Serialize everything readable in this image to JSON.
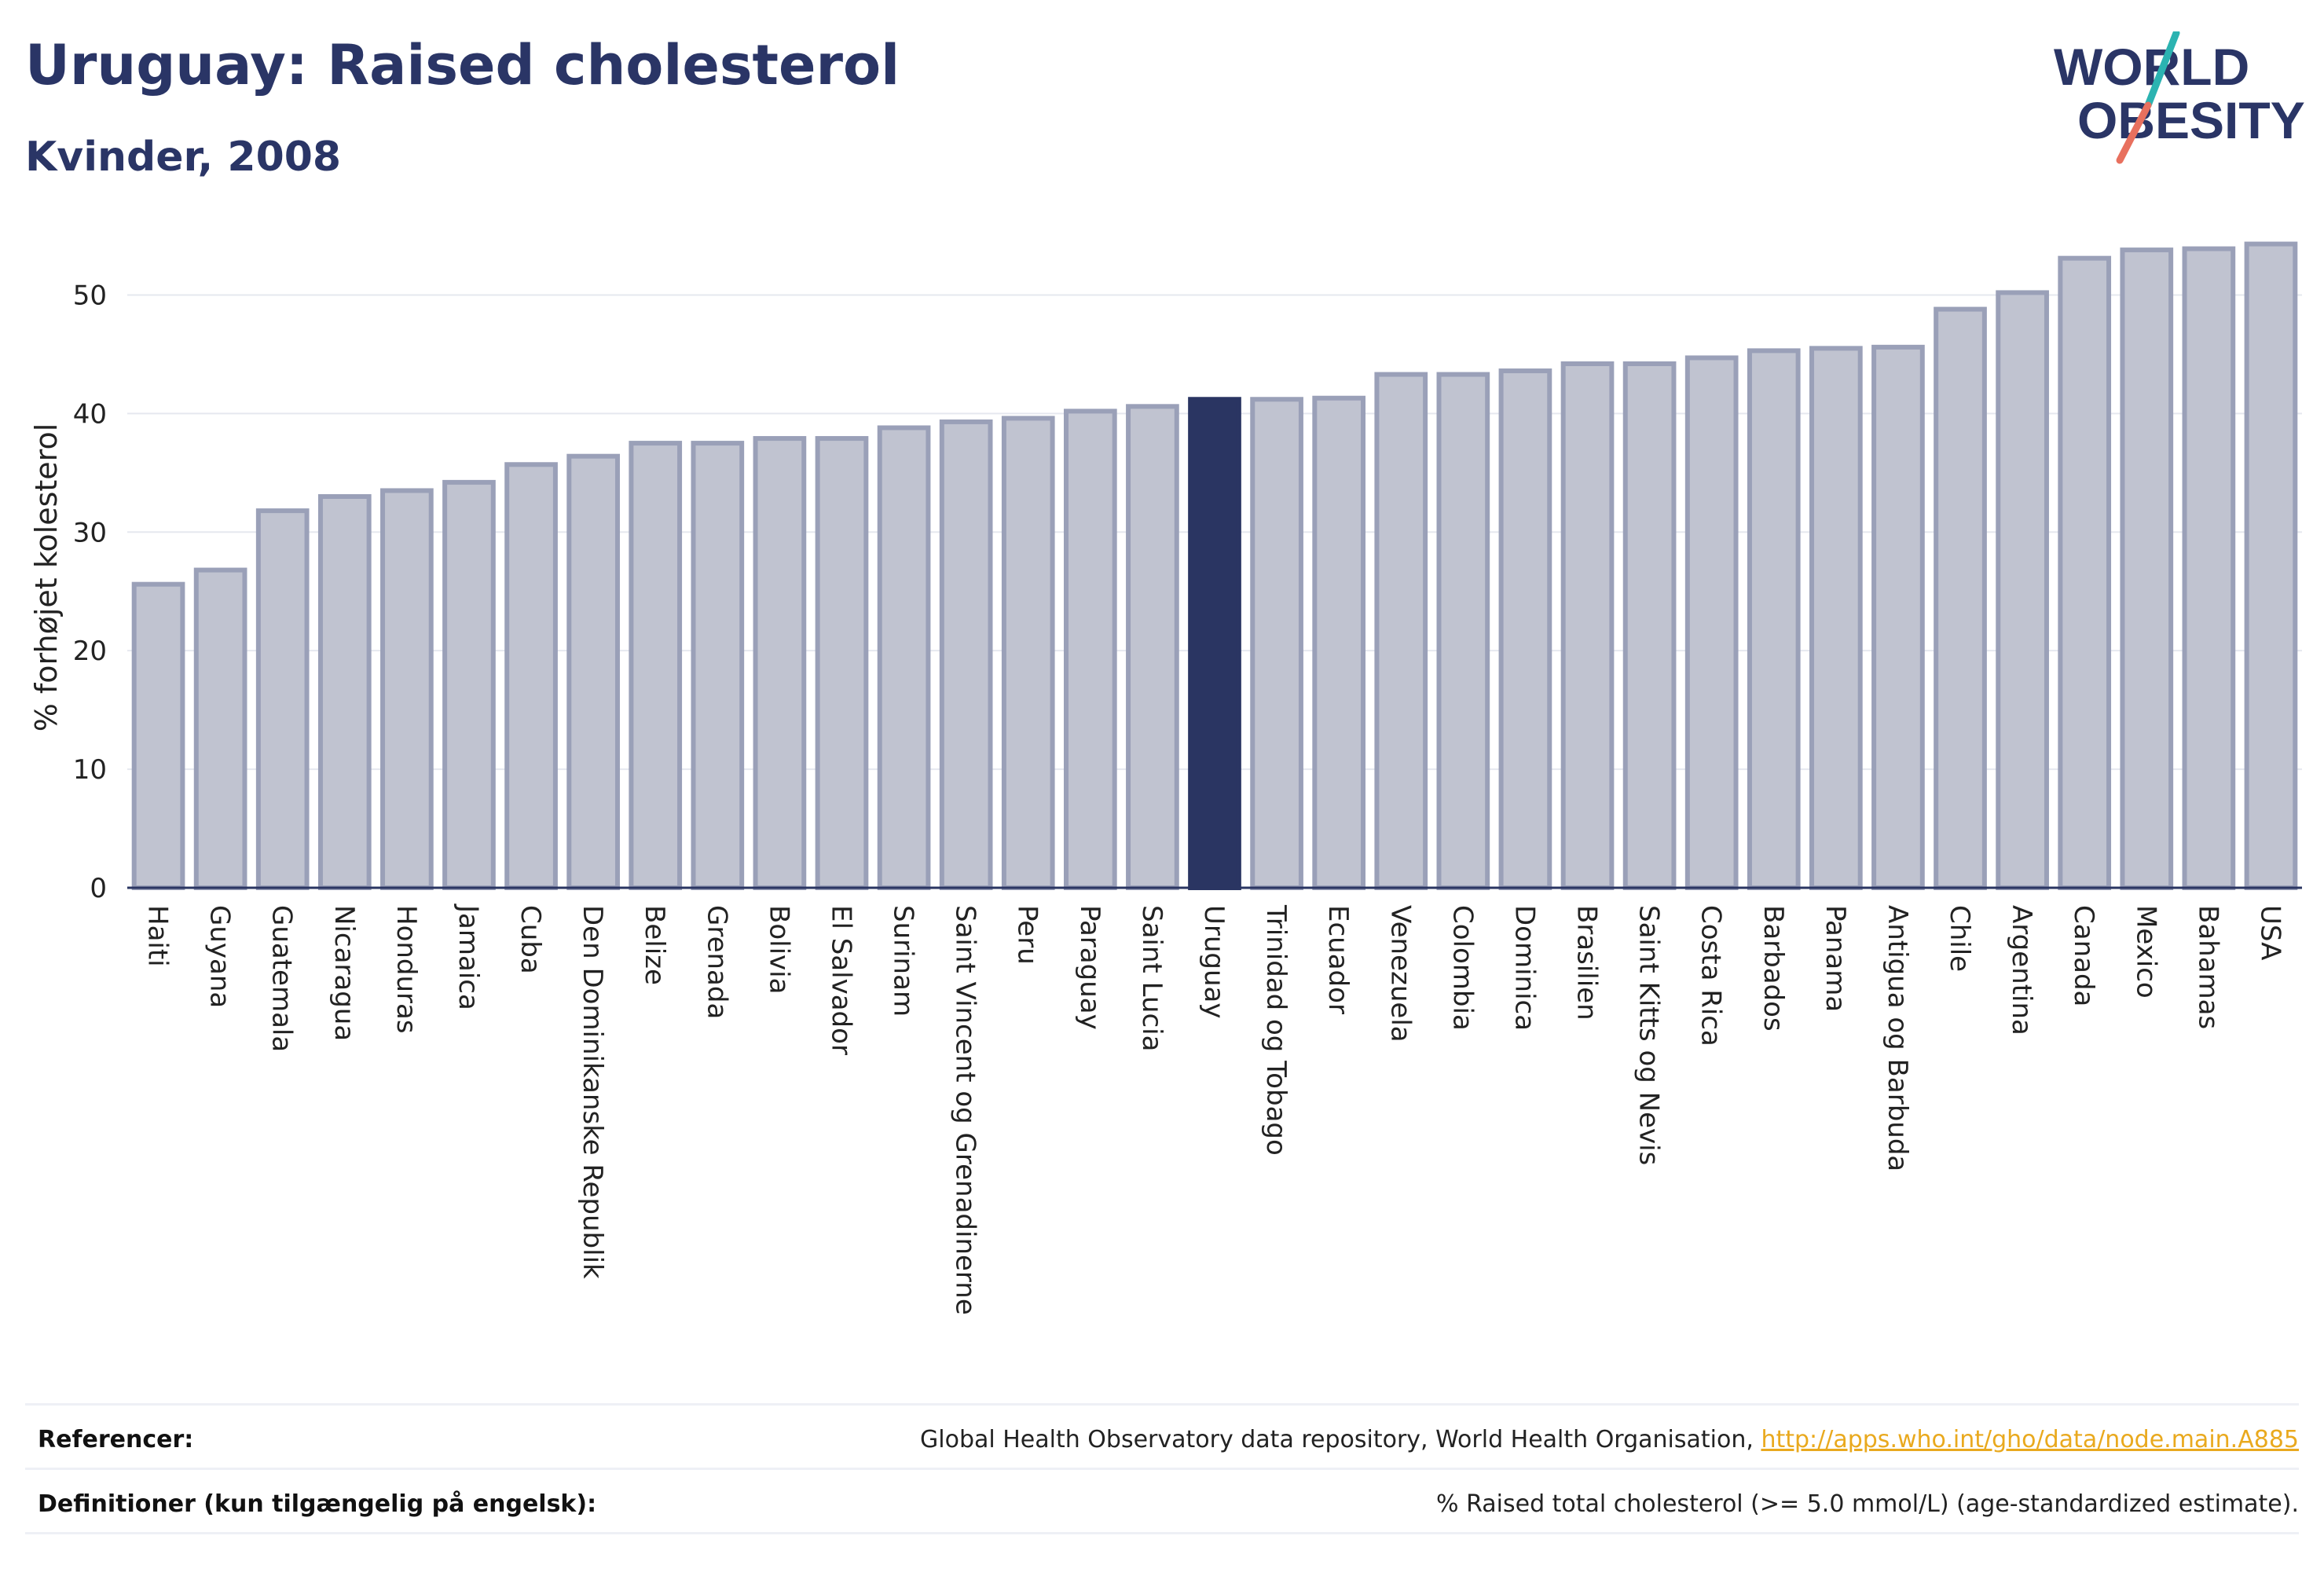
{
  "header": {
    "title": "Uruguay: Raised cholesterol",
    "subtitle": "Kvinder, 2008"
  },
  "logo": {
    "line1": "WORLD",
    "line2": "OBESITY",
    "accent_teal": "#2bb3b1",
    "accent_coral": "#e8705e"
  },
  "colors": {
    "bar_default": "#c0c3d0",
    "bar_default_border": "#9aa0b8",
    "bar_highlight": "#2a3562",
    "axis_text": "#222222",
    "grid": "#e6e8ef"
  },
  "chart_data": {
    "type": "bar",
    "title": "",
    "xlabel": "",
    "ylabel": "% forhøjet kolesterol",
    "ylim": [
      0,
      55
    ],
    "yticks": [
      0,
      10,
      20,
      30,
      40,
      50
    ],
    "grid": true,
    "highlight": "Uruguay",
    "categories": [
      "Haiti",
      "Guyana",
      "Guatemala",
      "Nicaragua",
      "Honduras",
      "Jamaica",
      "Cuba",
      "Den Dominikanske Republik",
      "Belize",
      "Grenada",
      "Bolivia",
      "El Salvador",
      "Surinam",
      "Saint Vincent og Grenadinerne",
      "Peru",
      "Paraguay",
      "Saint Lucia",
      "Uruguay",
      "Trinidad og Tobago",
      "Ecuador",
      "Venezuela",
      "Colombia",
      "Dominica",
      "Brasilien",
      "Saint Kitts og Nevis",
      "Costa Rica",
      "Barbados",
      "Panama",
      "Antigua og Barbuda",
      "Chile",
      "Argentina",
      "Canada",
      "Mexico",
      "Bahamas",
      "USA"
    ],
    "values": [
      25.6,
      26.8,
      31.8,
      33.0,
      33.5,
      34.2,
      35.7,
      36.4,
      37.5,
      37.5,
      37.9,
      37.9,
      38.8,
      39.3,
      39.6,
      40.2,
      40.6,
      41.2,
      41.2,
      41.3,
      43.3,
      43.3,
      43.6,
      44.2,
      44.2,
      44.7,
      45.3,
      45.5,
      45.6,
      48.8,
      50.2,
      53.1,
      53.8,
      53.9,
      54.3
    ]
  },
  "footer": {
    "references_label": "Referencer:",
    "references_text": "Global Health Observatory data repository, World Health Organisation, ",
    "references_link": "http://apps.who.int/gho/data/node.main.A885",
    "definitions_label": "Definitioner (kun tilgængelig på engelsk):",
    "definitions_text": "% Raised total cholesterol (>= 5.0 mmol/L) (age-standardized estimate)."
  }
}
